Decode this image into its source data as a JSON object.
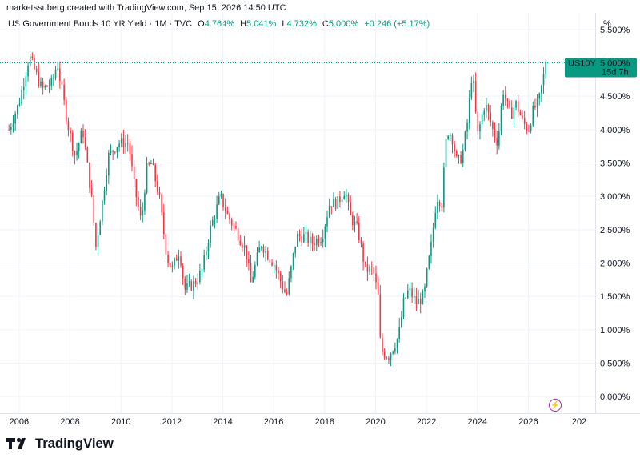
{
  "header": {
    "byline": "marketssuberg created with TradingView.com, Sep 15, 2026 14:50 UTC"
  },
  "legend": {
    "symbol": "US Government Bonds 10 YR Yield · 1M · TVC",
    "o_label": "O",
    "o_value": "4.764%",
    "h_label": "H",
    "h_value": "5.041%",
    "l_label": "L",
    "l_value": "4.732%",
    "c_label": "C",
    "c_value": "5.000%",
    "change": "+0.246 (+5.17%)"
  },
  "price_tag": {
    "symbol": "US10Y",
    "price": "5.000%",
    "countdown": "15d 7h"
  },
  "colors": {
    "up": "#089981",
    "down": "#f23645",
    "grid": "#f0f3fa",
    "axis_text": "#131722",
    "last_price_line": "#089981"
  },
  "footer": {
    "brand": "TradingView"
  },
  "chart_data": {
    "type": "candlestick",
    "title": "US Government Bonds 10 YR Yield · 1M · TVC",
    "interval": "1M",
    "y_unit": "%",
    "y_ticks": [
      "5.500%",
      "5.000%",
      "4.500%",
      "4.000%",
      "3.500%",
      "3.000%",
      "2.500%",
      "2.000%",
      "1.500%",
      "1.000%",
      "0.500%",
      "0.000%"
    ],
    "x_ticks": [
      "2006",
      "2008",
      "2010",
      "2012",
      "2014",
      "2016",
      "2018",
      "2020",
      "2022",
      "2024",
      "2026",
      "202"
    ],
    "ylim": [
      -0.25,
      5.75
    ],
    "xlim": [
      2005.5,
      2028.5
    ],
    "grid": true,
    "series": [
      {
        "close_path": [
          [
            2005.6,
            4.0
          ],
          [
            2006.0,
            4.4
          ],
          [
            2006.4,
            5.1
          ],
          [
            2006.9,
            4.6
          ],
          [
            2007.3,
            4.7
          ],
          [
            2007.5,
            5.0
          ],
          [
            2007.9,
            4.1
          ],
          [
            2008.2,
            3.6
          ],
          [
            2008.5,
            4.0
          ],
          [
            2008.9,
            2.8
          ],
          [
            2009.0,
            2.2
          ],
          [
            2009.3,
            3.0
          ],
          [
            2009.5,
            3.6
          ],
          [
            2009.9,
            3.8
          ],
          [
            2010.3,
            3.8
          ],
          [
            2010.5,
            3.2
          ],
          [
            2010.8,
            2.6
          ],
          [
            2011.0,
            3.4
          ],
          [
            2011.2,
            3.5
          ],
          [
            2011.5,
            3.0
          ],
          [
            2011.8,
            2.1
          ],
          [
            2012.0,
            1.9
          ],
          [
            2012.3,
            2.2
          ],
          [
            2012.5,
            1.6
          ],
          [
            2012.9,
            1.7
          ],
          [
            2013.2,
            1.9
          ],
          [
            2013.5,
            2.5
          ],
          [
            2013.9,
            3.0
          ],
          [
            2014.2,
            2.7
          ],
          [
            2014.5,
            2.5
          ],
          [
            2014.9,
            2.2
          ],
          [
            2015.1,
            1.7
          ],
          [
            2015.5,
            2.3
          ],
          [
            2015.8,
            2.1
          ],
          [
            2016.0,
            2.0
          ],
          [
            2016.2,
            1.8
          ],
          [
            2016.5,
            1.5
          ],
          [
            2016.9,
            2.4
          ],
          [
            2017.2,
            2.4
          ],
          [
            2017.5,
            2.3
          ],
          [
            2017.9,
            2.4
          ],
          [
            2018.2,
            2.9
          ],
          [
            2018.5,
            2.9
          ],
          [
            2018.8,
            3.1
          ],
          [
            2019.0,
            2.7
          ],
          [
            2019.3,
            2.5
          ],
          [
            2019.6,
            1.9
          ],
          [
            2019.9,
            1.9
          ],
          [
            2020.1,
            1.5
          ],
          [
            2020.2,
            0.7
          ],
          [
            2020.5,
            0.6
          ],
          [
            2020.9,
            0.9
          ],
          [
            2021.1,
            1.4
          ],
          [
            2021.3,
            1.6
          ],
          [
            2021.6,
            1.4
          ],
          [
            2021.9,
            1.5
          ],
          [
            2022.0,
            1.8
          ],
          [
            2022.2,
            2.3
          ],
          [
            2022.4,
            3.0
          ],
          [
            2022.6,
            2.9
          ],
          [
            2022.8,
            4.0
          ],
          [
            2023.0,
            3.9
          ],
          [
            2023.2,
            3.5
          ],
          [
            2023.4,
            3.6
          ],
          [
            2023.6,
            4.1
          ],
          [
            2023.8,
            4.9
          ],
          [
            2024.0,
            3.9
          ],
          [
            2024.3,
            4.4
          ],
          [
            2024.6,
            4.0
          ],
          [
            2024.8,
            3.8
          ],
          [
            2025.0,
            4.6
          ],
          [
            2025.3,
            4.2
          ],
          [
            2025.5,
            4.4
          ],
          [
            2025.8,
            4.1
          ],
          [
            2026.0,
            4.0
          ],
          [
            2026.2,
            4.3
          ],
          [
            2026.4,
            4.4
          ],
          [
            2026.5,
            4.6
          ],
          [
            2026.7,
            5.0
          ]
        ]
      }
    ],
    "last_value": 5.0
  }
}
